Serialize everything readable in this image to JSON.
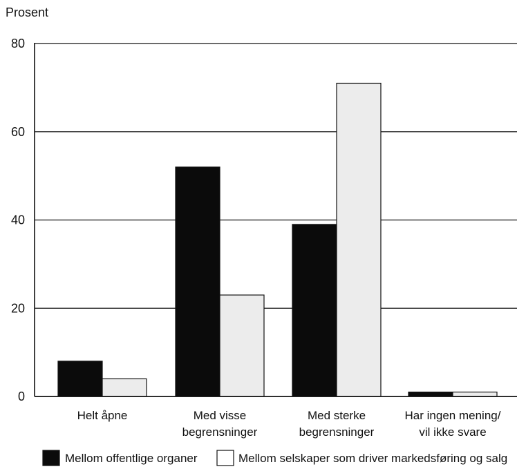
{
  "chart_data": {
    "type": "bar",
    "ylabel": "Prosent",
    "ylim": [
      0,
      80
    ],
    "yticks": [
      0,
      20,
      40,
      60,
      80
    ],
    "grid": true,
    "legend_position": "bottom",
    "categories": [
      [
        "Helt åpne"
      ],
      [
        "Med visse",
        "begrensninger"
      ],
      [
        "Med sterke",
        "begrensninger"
      ],
      [
        "Har ingen mening/",
        "vil ikke svare"
      ]
    ],
    "series": [
      {
        "name": "Mellom offentlige organer",
        "color": "#0b0b0b",
        "values": [
          8,
          52,
          39,
          1
        ]
      },
      {
        "name": "Mellom selskaper som driver markedsføring og salg",
        "color": "#ececec",
        "values": [
          4,
          23,
          71,
          1
        ]
      }
    ]
  }
}
